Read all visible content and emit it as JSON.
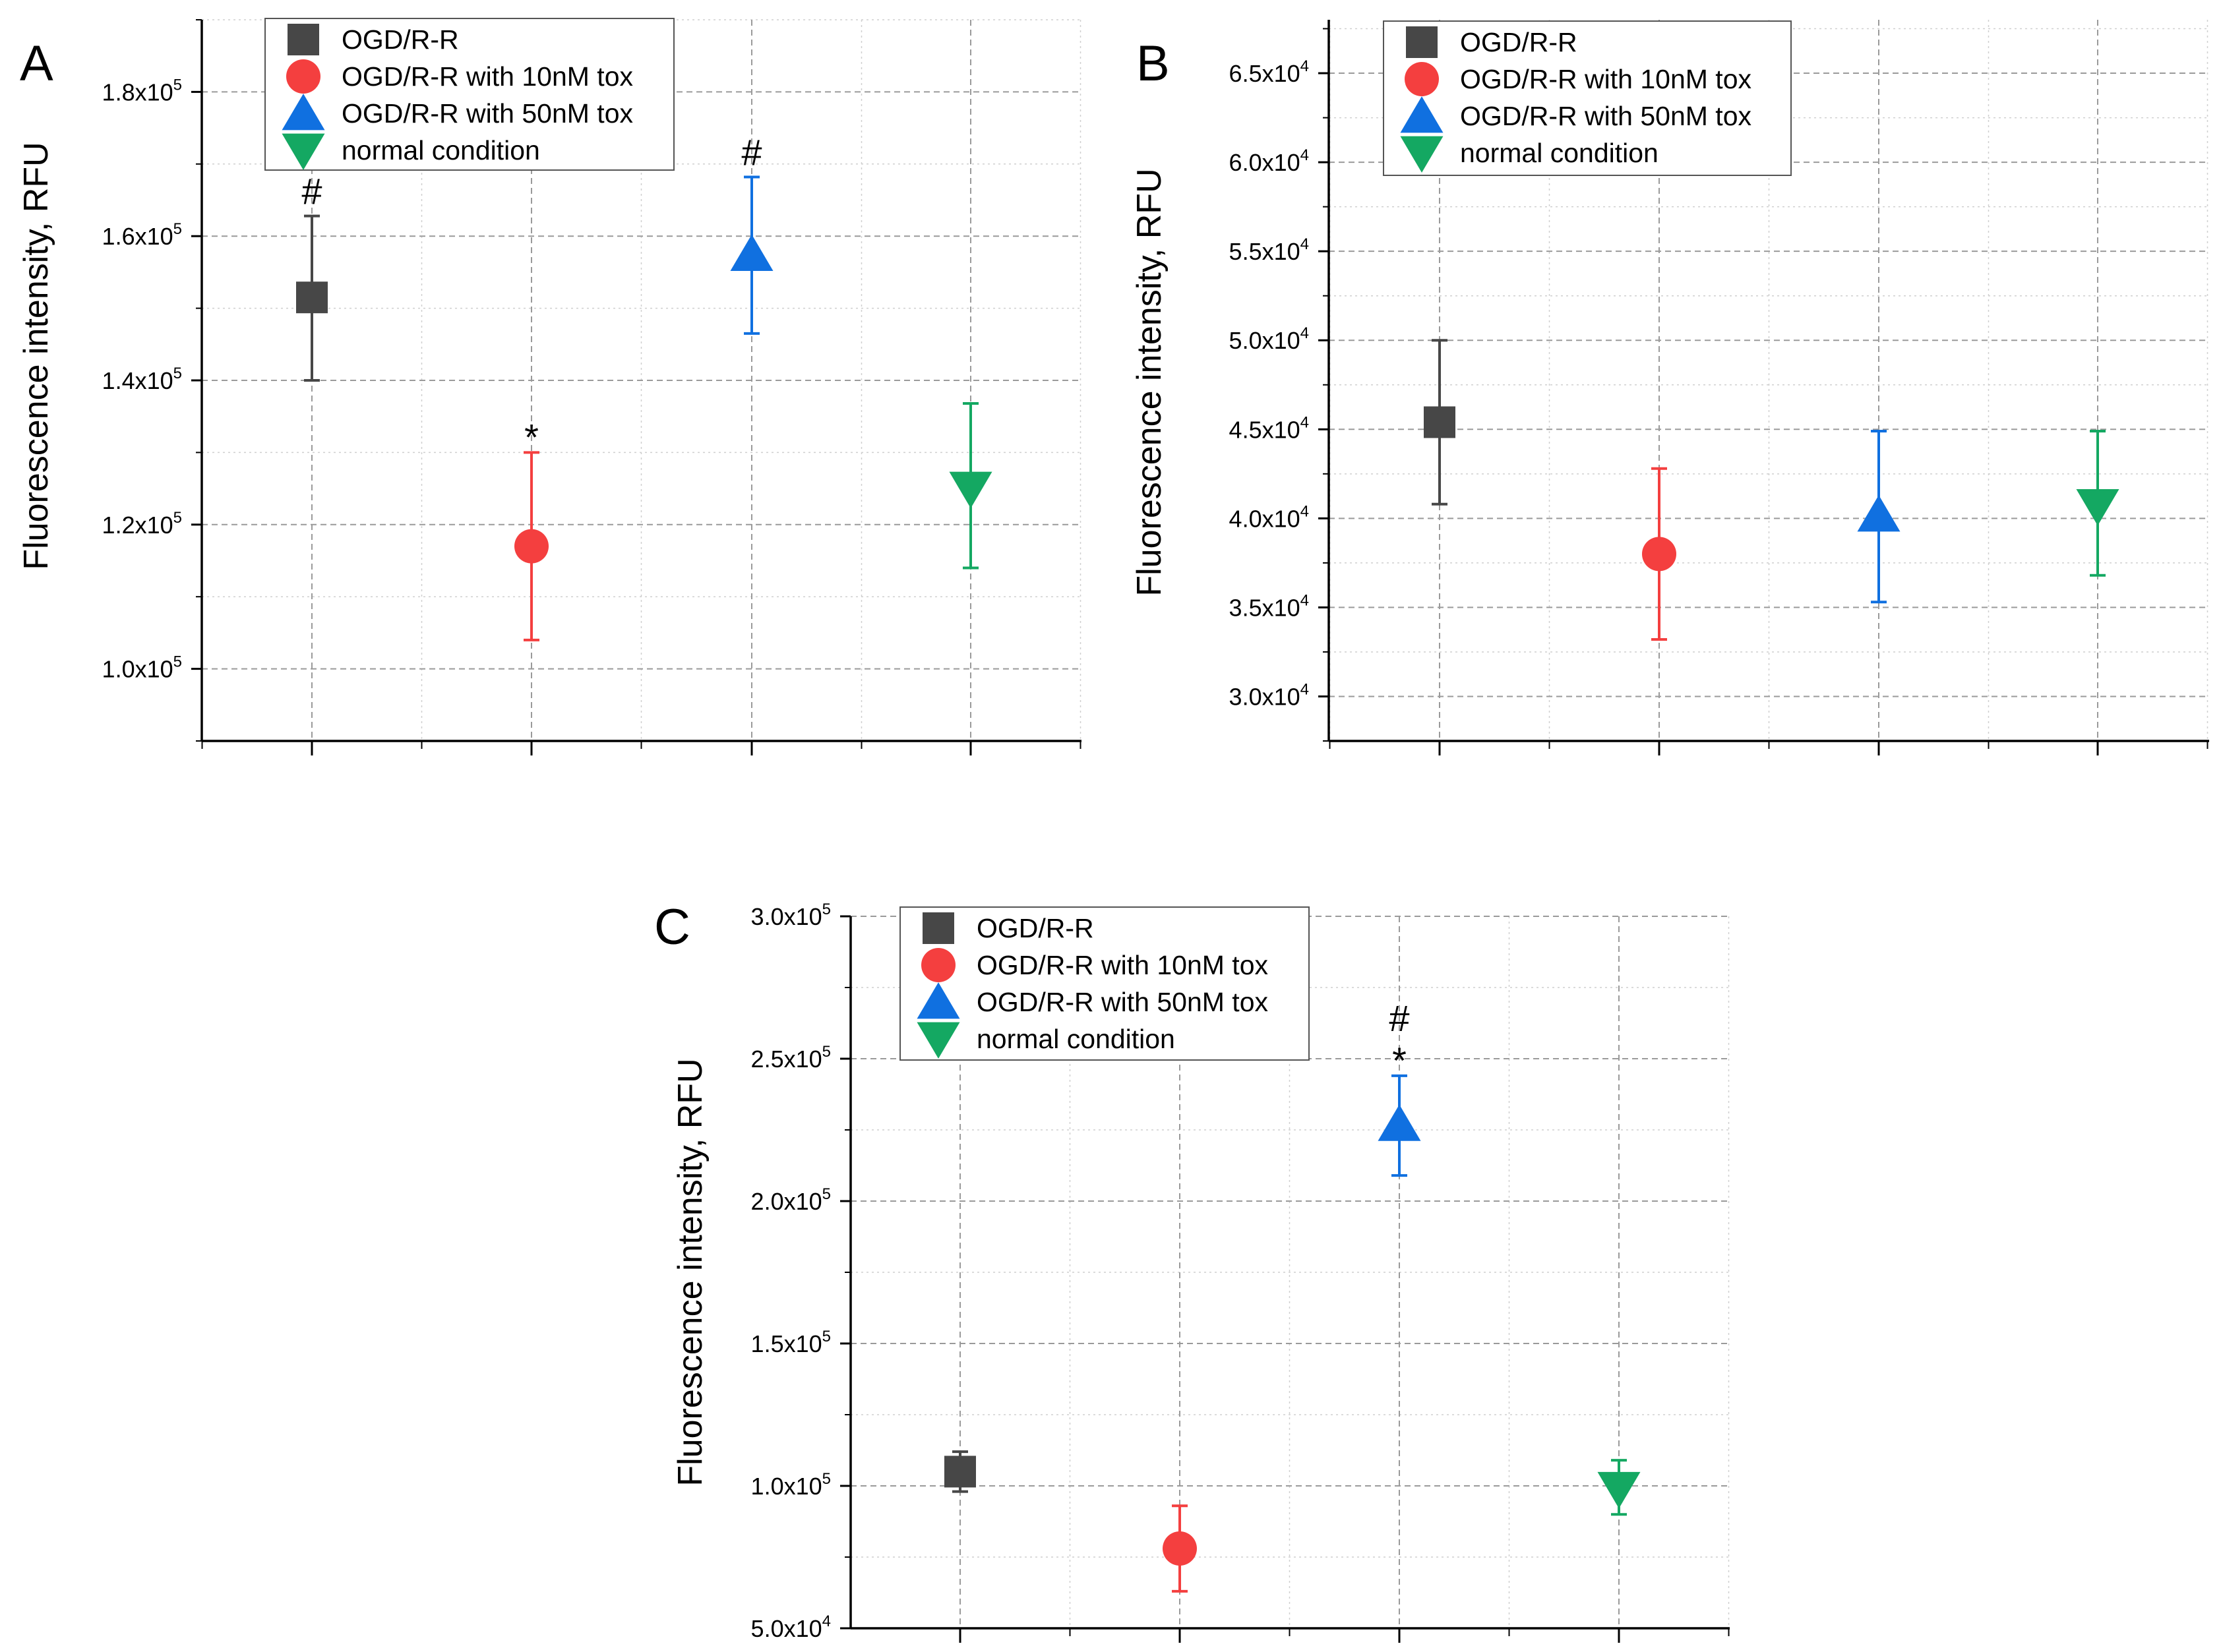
{
  "colors": {
    "OGD/R-R": "#474747",
    "OGD/R-R with 10nM tox": "#f43f3f",
    "OGD/R-R with 50nM tox": "#1070e0",
    "normal condition": "#14a862"
  },
  "chart_data": [
    {
      "panel": "A",
      "type": "scatter",
      "ylabel": "Fluorescence intensity, RFU",
      "ylim": [
        90000,
        190000
      ],
      "yticks": [
        {
          "value": 100000,
          "mantissa": "1.0",
          "exp": "5"
        },
        {
          "value": 120000,
          "mantissa": "1.2",
          "exp": "5"
        },
        {
          "value": 140000,
          "mantissa": "1.4",
          "exp": "5"
        },
        {
          "value": 160000,
          "mantissa": "1.6",
          "exp": "5"
        },
        {
          "value": 180000,
          "mantissa": "1.8",
          "exp": "5"
        }
      ],
      "legend": [
        "OGD/R-R",
        "OGD/R-R with 10nM tox",
        "OGD/R-R with 50nM tox",
        "normal condition"
      ],
      "series": [
        {
          "name": "OGD/R-R",
          "marker": "square",
          "x": 1,
          "y": 151500,
          "yerr_low": 140000,
          "yerr_high": 162800,
          "annotation": "#"
        },
        {
          "name": "OGD/R-R with 10nM tox",
          "marker": "circle",
          "x": 2,
          "y": 117000,
          "yerr_low": 104000,
          "yerr_high": 130000,
          "annotation": "*"
        },
        {
          "name": "OGD/R-R with 50nM tox",
          "marker": "triangle-up",
          "x": 3,
          "y": 157500,
          "yerr_low": 146500,
          "yerr_high": 168200,
          "annotation": "#"
        },
        {
          "name": "normal condition",
          "marker": "triangle-down",
          "x": 4,
          "y": 125000,
          "yerr_low": 114000,
          "yerr_high": 136800,
          "annotation": ""
        }
      ]
    },
    {
      "panel": "B",
      "type": "scatter",
      "ylabel": "Fluorescence intensity, RFU",
      "ylim": [
        27500,
        68000
      ],
      "yticks": [
        {
          "value": 30000,
          "mantissa": "3.0",
          "exp": "4"
        },
        {
          "value": 35000,
          "mantissa": "3.5",
          "exp": "4"
        },
        {
          "value": 40000,
          "mantissa": "4.0",
          "exp": "4"
        },
        {
          "value": 45000,
          "mantissa": "4.5",
          "exp": "4"
        },
        {
          "value": 50000,
          "mantissa": "5.0",
          "exp": "4"
        },
        {
          "value": 55000,
          "mantissa": "5.5",
          "exp": "4"
        },
        {
          "value": 60000,
          "mantissa": "6.0",
          "exp": "4"
        },
        {
          "value": 65000,
          "mantissa": "6.5",
          "exp": "4"
        }
      ],
      "legend": [
        "OGD/R-R",
        "OGD/R-R with 10nM tox",
        "OGD/R-R with 50nM tox",
        "normal condition"
      ],
      "series": [
        {
          "name": "OGD/R-R",
          "marker": "square",
          "x": 1,
          "y": 45400,
          "yerr_low": 40800,
          "yerr_high": 50000,
          "annotation": ""
        },
        {
          "name": "OGD/R-R with 10nM tox",
          "marker": "circle",
          "x": 2,
          "y": 38000,
          "yerr_low": 33200,
          "yerr_high": 42800,
          "annotation": ""
        },
        {
          "name": "OGD/R-R with 50nM tox",
          "marker": "triangle-up",
          "x": 3,
          "y": 40200,
          "yerr_low": 35300,
          "yerr_high": 44900,
          "annotation": ""
        },
        {
          "name": "normal condition",
          "marker": "triangle-down",
          "x": 4,
          "y": 40700,
          "yerr_low": 36800,
          "yerr_high": 44900,
          "annotation": ""
        }
      ]
    },
    {
      "panel": "C",
      "type": "scatter",
      "ylabel": "Fluorescence intensity, RFU",
      "ylim": [
        50000,
        300000
      ],
      "yticks": [
        {
          "value": 50000,
          "mantissa": "5.0",
          "exp": "4"
        },
        {
          "value": 100000,
          "mantissa": "1.0",
          "exp": "5"
        },
        {
          "value": 150000,
          "mantissa": "1.5",
          "exp": "5"
        },
        {
          "value": 200000,
          "mantissa": "2.0",
          "exp": "5"
        },
        {
          "value": 250000,
          "mantissa": "2.5",
          "exp": "5"
        },
        {
          "value": 300000,
          "mantissa": "3.0",
          "exp": "5"
        }
      ],
      "legend": [
        "OGD/R-R",
        "OGD/R-R with 10nM tox",
        "OGD/R-R with 50nM tox",
        "normal condition"
      ],
      "series": [
        {
          "name": "OGD/R-R",
          "marker": "square",
          "x": 1,
          "y": 105000,
          "yerr_low": 98000,
          "yerr_high": 112000,
          "annotation": ""
        },
        {
          "name": "OGD/R-R with 10nM tox",
          "marker": "circle",
          "x": 2,
          "y": 78000,
          "yerr_low": 63000,
          "yerr_high": 93000,
          "annotation": ""
        },
        {
          "name": "OGD/R-R with 50nM tox",
          "marker": "triangle-up",
          "x": 3,
          "y": 227000,
          "yerr_low": 209000,
          "yerr_high": 244000,
          "annotation": "#\n*"
        },
        {
          "name": "normal condition",
          "marker": "triangle-down",
          "x": 4,
          "y": 99000,
          "yerr_low": 90000,
          "yerr_high": 109000,
          "annotation": ""
        }
      ]
    }
  ]
}
